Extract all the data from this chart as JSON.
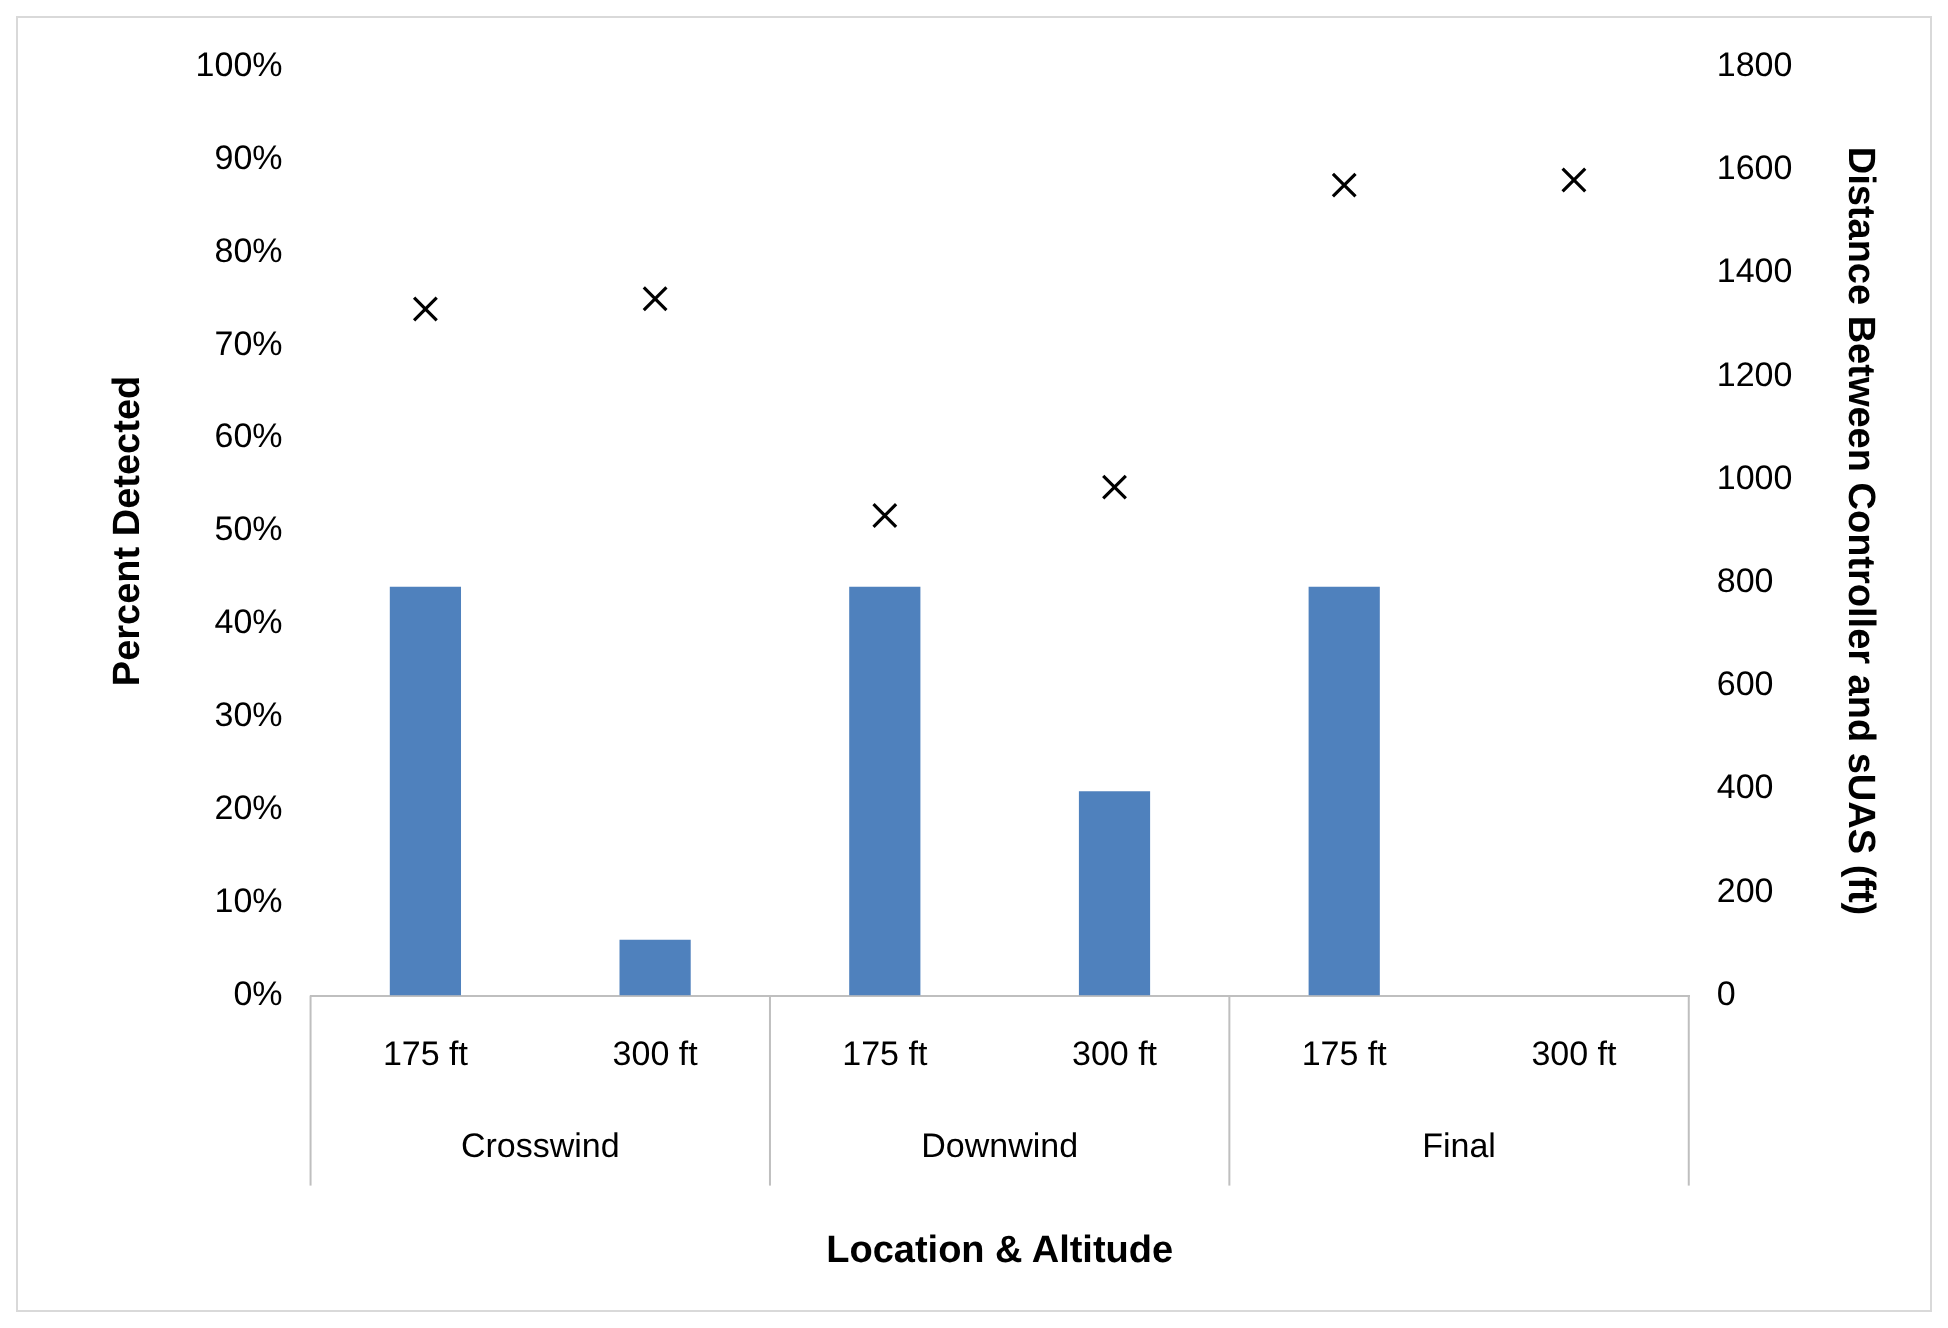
{
  "chart_data": {
    "type": "bar",
    "xlabel": "Location & Altitude",
    "ylabel": "Percent Detected",
    "y2label": "Distance Between Controller and sUAS (ft)",
    "categories": [
      "175 ft",
      "300 ft",
      "175 ft",
      "300 ft",
      "175 ft",
      "300 ft"
    ],
    "annotations": [
      "Crosswind",
      "Downwind",
      "Final"
    ],
    "series": [
      {
        "color": "#4f81bd",
        "values": [
          44,
          6,
          44,
          22,
          44,
          0
        ]
      },
      {
        "type": "scatter",
        "axis": "y2",
        "color": "#000000",
        "values": [
          1330,
          1350,
          930,
          985,
          1570,
          1580
        ]
      }
    ],
    "marker": "cross",
    "grid": false,
    "legend": false,
    "ylim": [
      0,
      100
    ],
    "yticks": [
      {
        "value": 0,
        "label": "0%"
      },
      {
        "value": 10,
        "label": "10%"
      },
      {
        "value": 20,
        "label": "20%"
      },
      {
        "value": 30,
        "label": "30%"
      },
      {
        "value": 40,
        "label": "40%"
      },
      {
        "value": 50,
        "label": "50%"
      },
      {
        "value": 60,
        "label": "60%"
      },
      {
        "value": 70,
        "label": "70%"
      },
      {
        "value": 80,
        "label": "80%"
      },
      {
        "value": 90,
        "label": "90%"
      },
      {
        "value": 100,
        "label": "100%"
      }
    ],
    "y2lim": [
      0,
      1800
    ],
    "y2ticks": [
      0,
      200,
      400,
      600,
      800,
      1000,
      1200,
      1400,
      1600,
      1800
    ]
  }
}
